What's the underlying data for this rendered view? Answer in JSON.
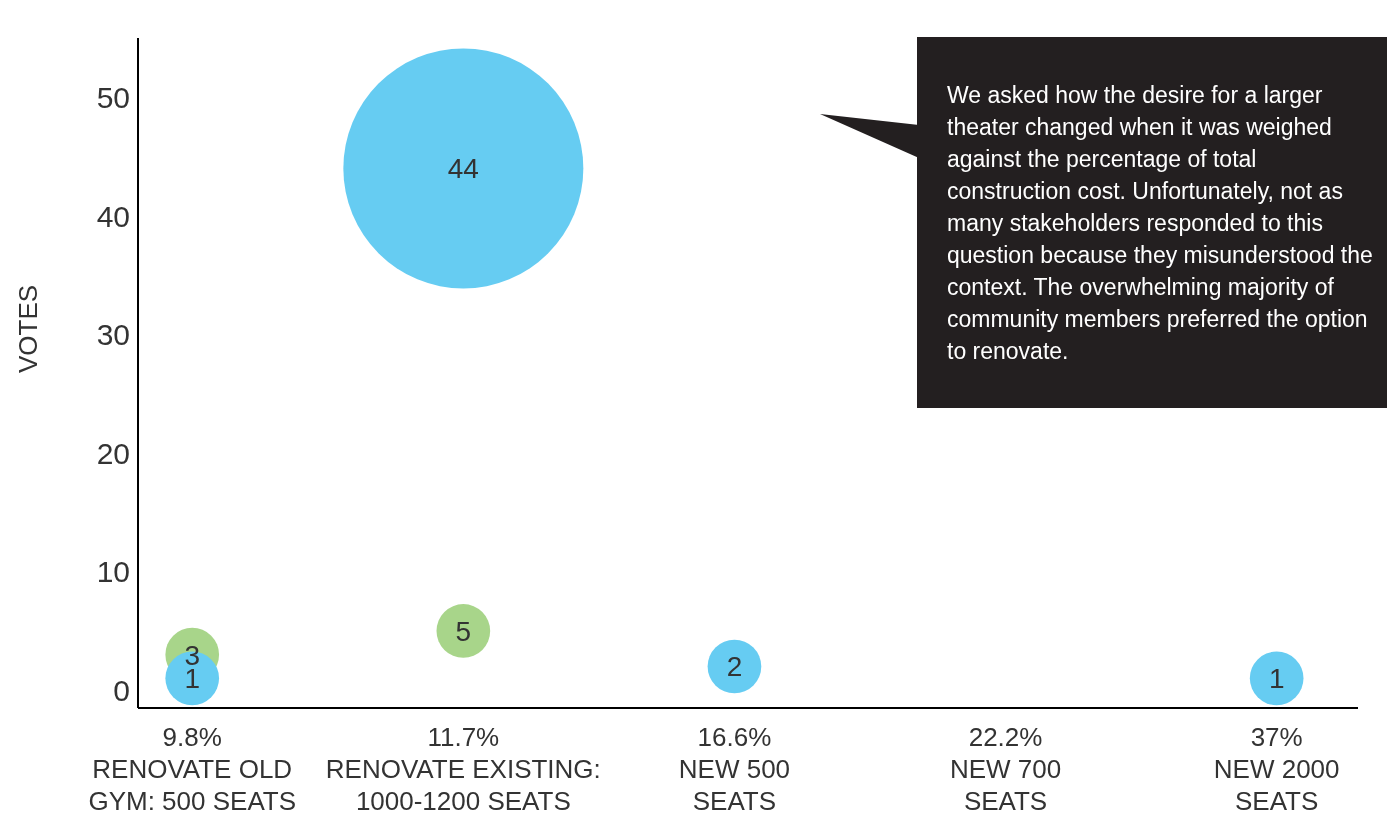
{
  "chart_data": {
    "type": "bubble",
    "ylabel": "VOTES",
    "categories": [
      "9.8%\nRENOVATE OLD\nGYM: 500 SEATS",
      "11.7%\nRENOVATE EXISTING:\n1000-1200 SEATS",
      "16.6%\nNEW 500\nSEATS",
      "22.2%\nNEW 700\nSEATS",
      "37%\nNEW 2000\nSEATS"
    ],
    "series": [
      {
        "color": "#a8d58a",
        "x": [
          "9.8%\nRENOVATE OLD\nGYM: 500 SEATS",
          "11.7%\nRENOVATE EXISTING:\n1000-1200 SEATS"
        ],
        "values": [
          3,
          5
        ],
        "sizes": [
          0.05,
          0.05
        ]
      },
      {
        "color": "#66ccf2",
        "x": [
          "9.8%\nRENOVATE OLD\nGYM: 500 SEATS",
          "11.7%\nRENOVATE EXISTING:\n1000-1200 SEATS",
          "16.6%\nNEW 500\nSEATS",
          "37%\nNEW 2000\nSEATS"
        ],
        "values": [
          1,
          44,
          2,
          1
        ],
        "sizes": [
          0.05,
          1,
          0.05,
          0.05
        ]
      }
    ],
    "data_labels": true,
    "ylim": [
      -1.5,
      55
    ],
    "yticks": [
      0,
      10,
      20,
      30,
      40,
      50
    ],
    "grid": false,
    "legend": false,
    "annotations": [
      "We asked how the desire for a larger theater changed when it was weighed against the percentage of total construction cost. Unfortunately, not as many stakeholders responded to this question because they misunderstood the context. The overwhelming majority of community members preferred the option to renovate."
    ]
  }
}
